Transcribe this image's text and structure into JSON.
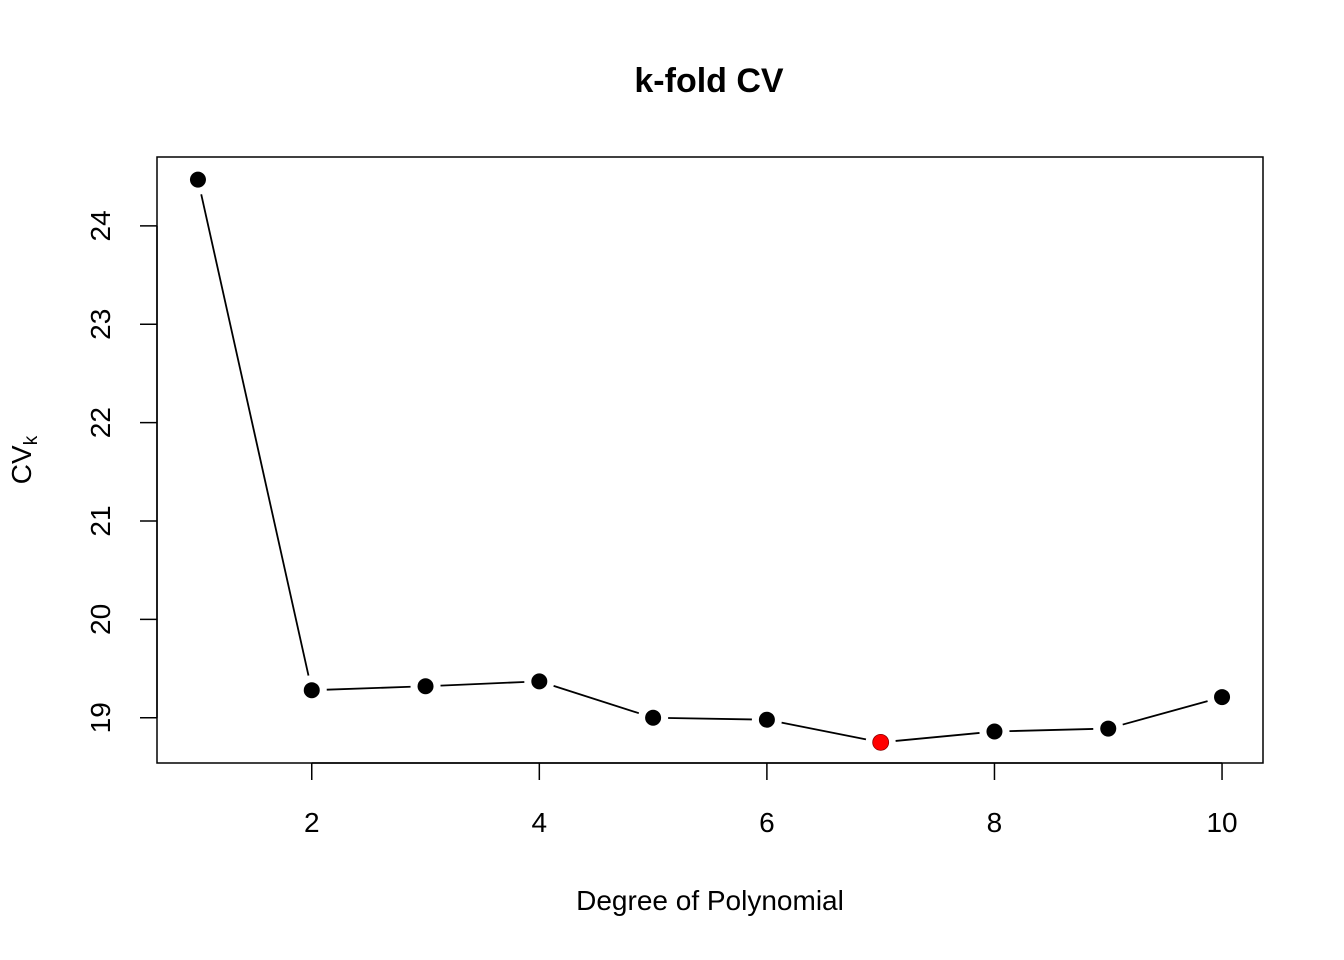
{
  "chart_data": {
    "type": "line",
    "title": "k-fold CV",
    "xlabel": "Degree of Polynomial",
    "ylabel": {
      "main": "CV",
      "sub": "k"
    },
    "x": [
      1,
      2,
      3,
      4,
      5,
      6,
      7,
      8,
      9,
      10
    ],
    "series": [
      {
        "values": [
          24.47,
          19.28,
          19.32,
          19.37,
          19.0,
          18.98,
          18.75,
          18.86,
          18.89,
          19.21
        ]
      }
    ],
    "highlight_index": 6,
    "xlim": [
      0.64,
      10.36
    ],
    "ylim": [
      18.54,
      24.7
    ],
    "xticks": [
      2,
      4,
      6,
      8,
      10
    ],
    "yticks": [
      19,
      20,
      21,
      22,
      23,
      24
    ],
    "grid": false,
    "colors": {
      "points": "#000000",
      "highlight": "#ff0000",
      "line": "#000000"
    }
  }
}
